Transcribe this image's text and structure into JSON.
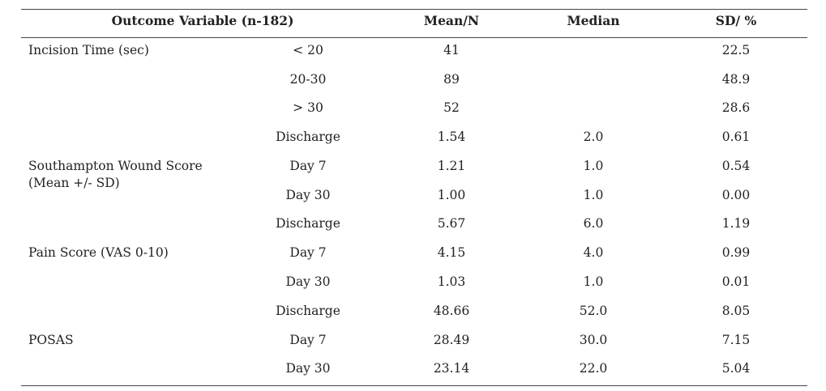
{
  "table": {
    "headers": {
      "variable": "Outcome Variable (n-182)",
      "mean": "Mean/N",
      "median": "Median",
      "sd": "SD/ %"
    },
    "variables": [
      {
        "label": "Incision Time (sec)"
      },
      {
        "label_line1": "Southampton Wound Score",
        "label_line2": "(Mean +/- SD)"
      },
      {
        "label": "Pain Score (VAS 0-10)"
      },
      {
        "label": "POSAS"
      }
    ],
    "rows": [
      {
        "sub": "< 20",
        "mean": "41",
        "median": "",
        "sd": "22.5"
      },
      {
        "sub": "20-30",
        "mean": "89",
        "median": "",
        "sd": "48.9"
      },
      {
        "sub": "> 30",
        "mean": "52",
        "median": "",
        "sd": "28.6"
      },
      {
        "sub": "Discharge",
        "mean": "1.54",
        "median": "2.0",
        "sd": "0.61"
      },
      {
        "sub": "Day 7",
        "mean": "1.21",
        "median": "1.0",
        "sd": "0.54"
      },
      {
        "sub": "Day 30",
        "mean": "1.00",
        "median": "1.0",
        "sd": "0.00"
      },
      {
        "sub": "Discharge",
        "mean": "5.67",
        "median": "6.0",
        "sd": "1.19"
      },
      {
        "sub": "Day 7",
        "mean": "4.15",
        "median": "4.0",
        "sd": "0.99"
      },
      {
        "sub": "Day 30",
        "mean": "1.03",
        "median": "1.0",
        "sd": "0.01"
      },
      {
        "sub": "Discharge",
        "mean": "48.66",
        "median": "52.0",
        "sd": "8.05"
      },
      {
        "sub": "Day 7",
        "mean": "28.49",
        "median": "30.0",
        "sd": "7.15"
      },
      {
        "sub": "Day 30",
        "mean": "23.14",
        "median": "22.0",
        "sd": "5.04"
      }
    ]
  }
}
